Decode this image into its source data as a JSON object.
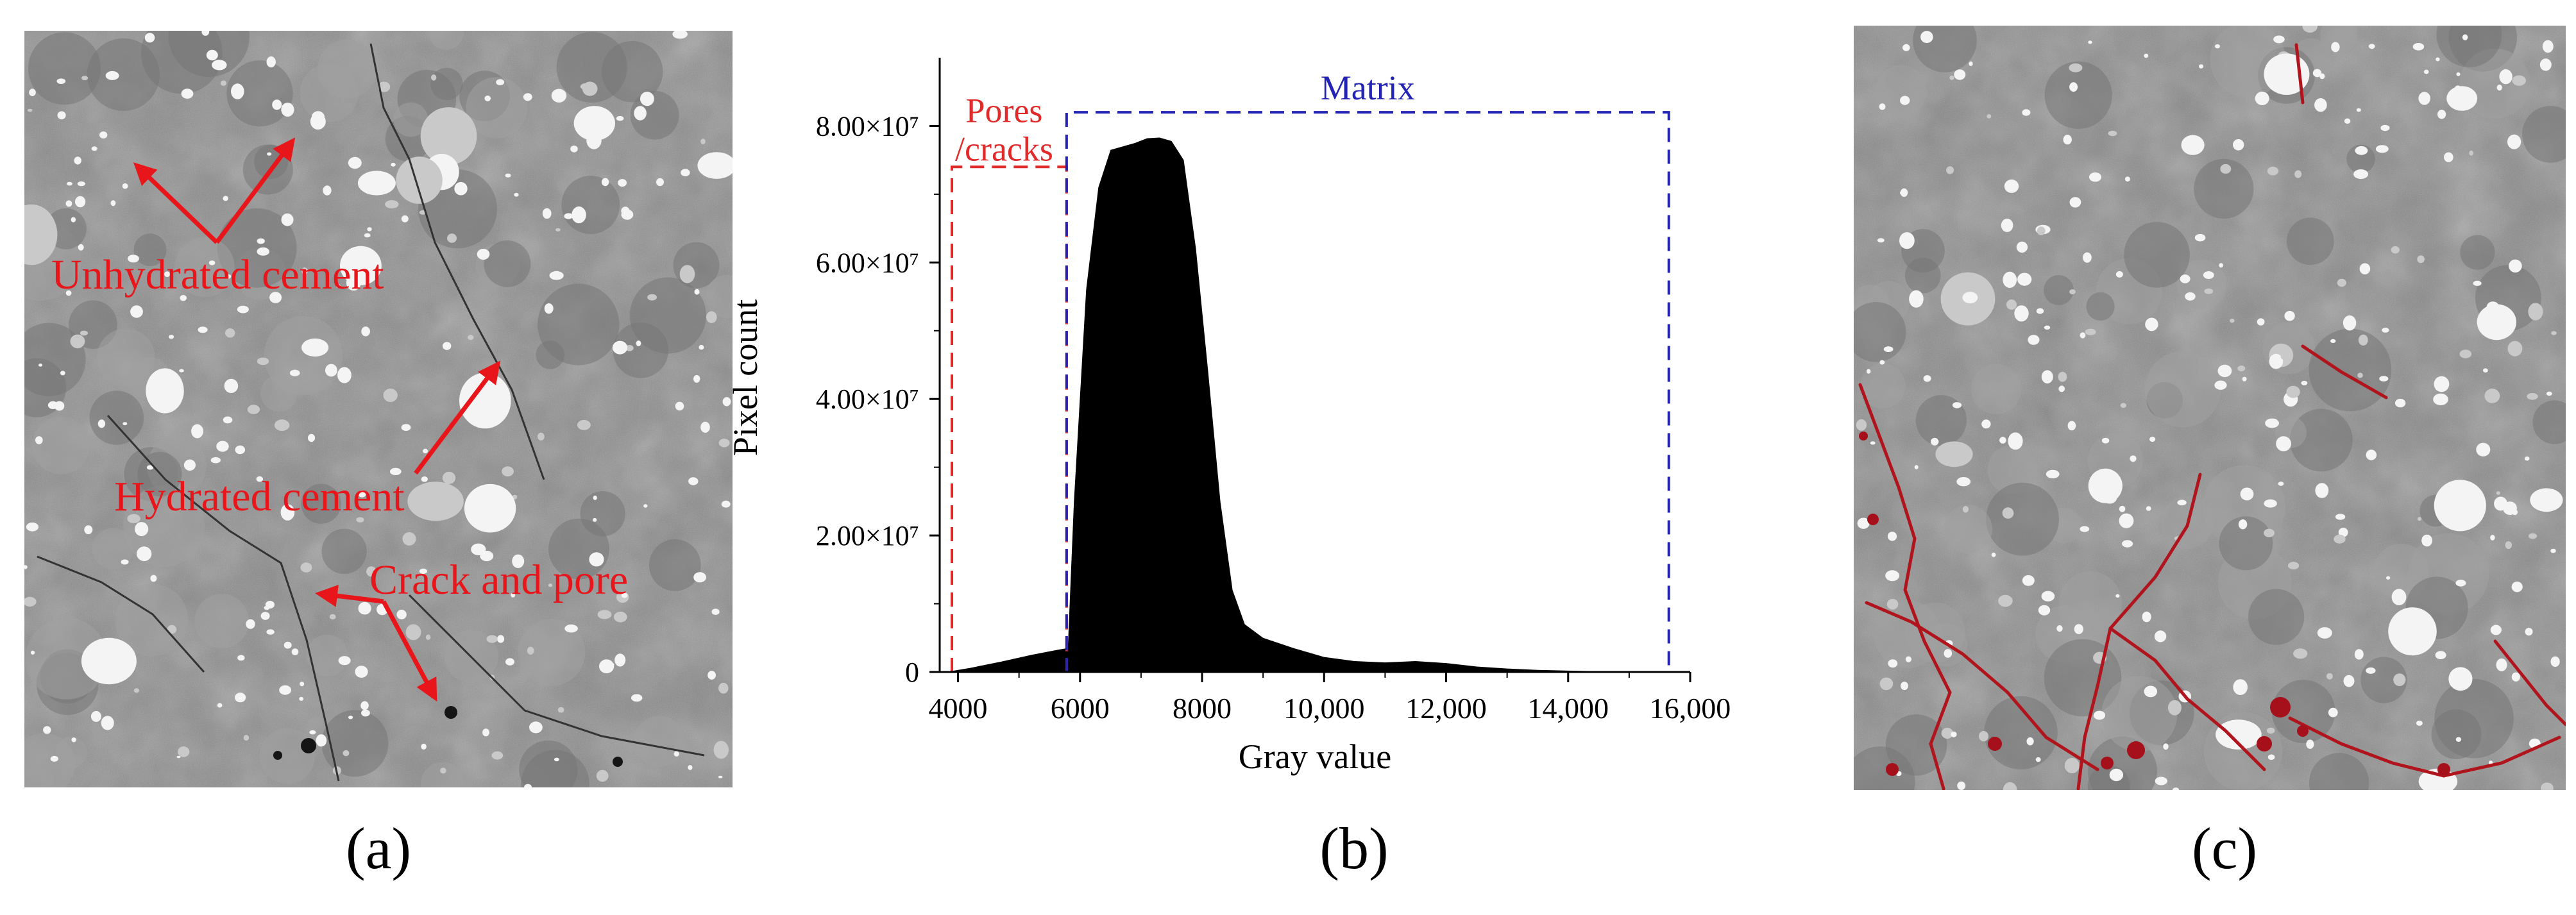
{
  "panels": [
    {
      "caption": "(a)",
      "image": "CT slice of cement paste",
      "annotations": [
        "Unhydrated cement",
        "Hydrated cement",
        "Crack and pore"
      ]
    },
    {
      "caption": "(b)"
    },
    {
      "caption": "(c)",
      "image": "Segmented CT slice with pores/cracks highlighted in red"
    }
  ],
  "colors": {
    "annotation": "#e8161b",
    "pores_box": "#e02a2a",
    "matrix_box": "#2323b4",
    "histogram_fill": "#000000",
    "image_gray": "#8a8a8a",
    "segmentation_red": "#b0141c"
  },
  "chart_data": {
    "type": "area",
    "title": "",
    "xlabel": "Gray value",
    "ylabel": "Pixel count",
    "xlim": [
      3700,
      16000
    ],
    "ylim": [
      0,
      90000000
    ],
    "x_ticks": [
      4000,
      6000,
      8000,
      10000,
      12000,
      14000,
      16000
    ],
    "x_tick_labels": [
      "4000",
      "6000",
      "8000",
      "10,000",
      "12,000",
      "14,000",
      "16,000"
    ],
    "y_ticks": [
      0,
      20000000,
      40000000,
      60000000,
      80000000
    ],
    "y_tick_labels": [
      "0",
      "2.00×10⁷",
      "4.00×10⁷",
      "6.00×10⁷",
      "8.00×10⁷"
    ],
    "grid": false,
    "series": [
      {
        "x": [
          3800,
          4200,
          4700,
          5200,
          5600,
          5800,
          5900,
          6100,
          6300,
          6500,
          6700,
          6900,
          7100,
          7300,
          7500,
          7700,
          7900,
          8100,
          8300,
          8500,
          8700,
          9000,
          9500,
          10000,
          10500,
          11000,
          11500,
          12000,
          12500,
          13000,
          13500,
          14000,
          14500,
          15000,
          15500
        ],
        "y": [
          0,
          600000,
          1500000,
          2500000,
          3200000,
          3500000,
          25000000,
          56000000,
          71000000,
          76500000,
          77000000,
          77500000,
          78200000,
          78300000,
          77800000,
          75000000,
          62000000,
          44000000,
          25000000,
          12000000,
          7000000,
          5000000,
          3500000,
          2200000,
          1600000,
          1400000,
          1600000,
          1300000,
          800000,
          500000,
          300000,
          200000,
          100000,
          50000,
          0
        ]
      }
    ],
    "regions": [
      {
        "label": "Pores\n/cracks",
        "label_lines": [
          "Pores",
          "/cracks"
        ],
        "x_range": [
          3900,
          5780
        ],
        "y_top": 74000000
      },
      {
        "label": "Matrix",
        "x_range": [
          5780,
          15650
        ],
        "y_top": 82000000
      }
    ]
  }
}
